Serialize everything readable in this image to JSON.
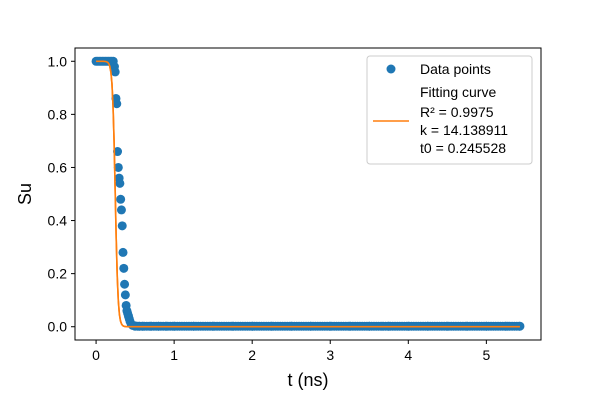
{
  "chart_data": {
    "type": "scatter",
    "xlabel": "t (ns)",
    "ylabel": "Su",
    "xlim": [
      -0.27,
      5.7
    ],
    "ylim": [
      -0.05,
      1.05
    ],
    "xticks": [
      0,
      1,
      2,
      3,
      4,
      5
    ],
    "xtick_labels": [
      "0",
      "1",
      "2",
      "3",
      "4",
      "5"
    ],
    "yticks": [
      0.0,
      0.2,
      0.4,
      0.6,
      0.8,
      1.0
    ],
    "ytick_labels": [
      "0.0",
      "0.2",
      "0.4",
      "0.6",
      "0.8",
      "1.0"
    ],
    "grid": false,
    "legend_position": "top-right",
    "colors": {
      "points": "#1f77b4",
      "curve": "#ff7f0e"
    },
    "series": [
      {
        "name": "Data points",
        "kind": "scatter",
        "x": [
          0.0,
          0.02,
          0.04,
          0.06,
          0.08,
          0.1,
          0.12,
          0.14,
          0.16,
          0.18,
          0.2,
          0.22,
          0.235,
          0.245,
          0.255,
          0.265,
          0.275,
          0.285,
          0.295,
          0.305,
          0.315,
          0.325,
          0.335,
          0.345,
          0.355,
          0.365,
          0.375,
          0.385,
          0.395,
          0.405,
          0.415,
          0.425,
          0.435,
          0.45,
          0.47,
          0.5,
          0.55,
          0.6,
          0.7,
          0.8,
          0.9,
          1.0,
          1.25,
          1.5,
          1.75,
          2.0,
          2.25,
          2.5,
          2.75,
          3.0,
          3.25,
          3.5,
          3.75,
          4.0,
          4.25,
          4.5,
          4.75,
          5.0,
          5.25,
          5.43
        ],
        "y": [
          1.0,
          1.0,
          1.0,
          1.0,
          1.0,
          1.0,
          1.0,
          1.0,
          1.0,
          1.0,
          1.0,
          1.0,
          0.98,
          0.96,
          0.86,
          0.84,
          0.66,
          0.6,
          0.56,
          0.54,
          0.48,
          0.44,
          0.38,
          0.28,
          0.22,
          0.16,
          0.12,
          0.08,
          0.06,
          0.05,
          0.04,
          0.03,
          0.02,
          0.01,
          0.005,
          0.003,
          0.002,
          0.002,
          0.002,
          0.002,
          0.002,
          0.002,
          0.002,
          0.002,
          0.002,
          0.002,
          0.002,
          0.002,
          0.002,
          0.002,
          0.002,
          0.002,
          0.002,
          0.002,
          0.002,
          0.002,
          0.002,
          0.002,
          0.002,
          0.002
        ]
      },
      {
        "name": "Fitting curve",
        "kind": "line",
        "model": "logistic",
        "k": 14.138911,
        "t0": 0.245528,
        "x_range": [
          0.0,
          5.43
        ]
      }
    ],
    "legend": {
      "points_label": "Data points",
      "curve_label": "Fitting curve",
      "r2_label": "R² = 0.9975",
      "k_label": "k = 14.138911",
      "t0_label": "t0 = 0.245528"
    }
  }
}
